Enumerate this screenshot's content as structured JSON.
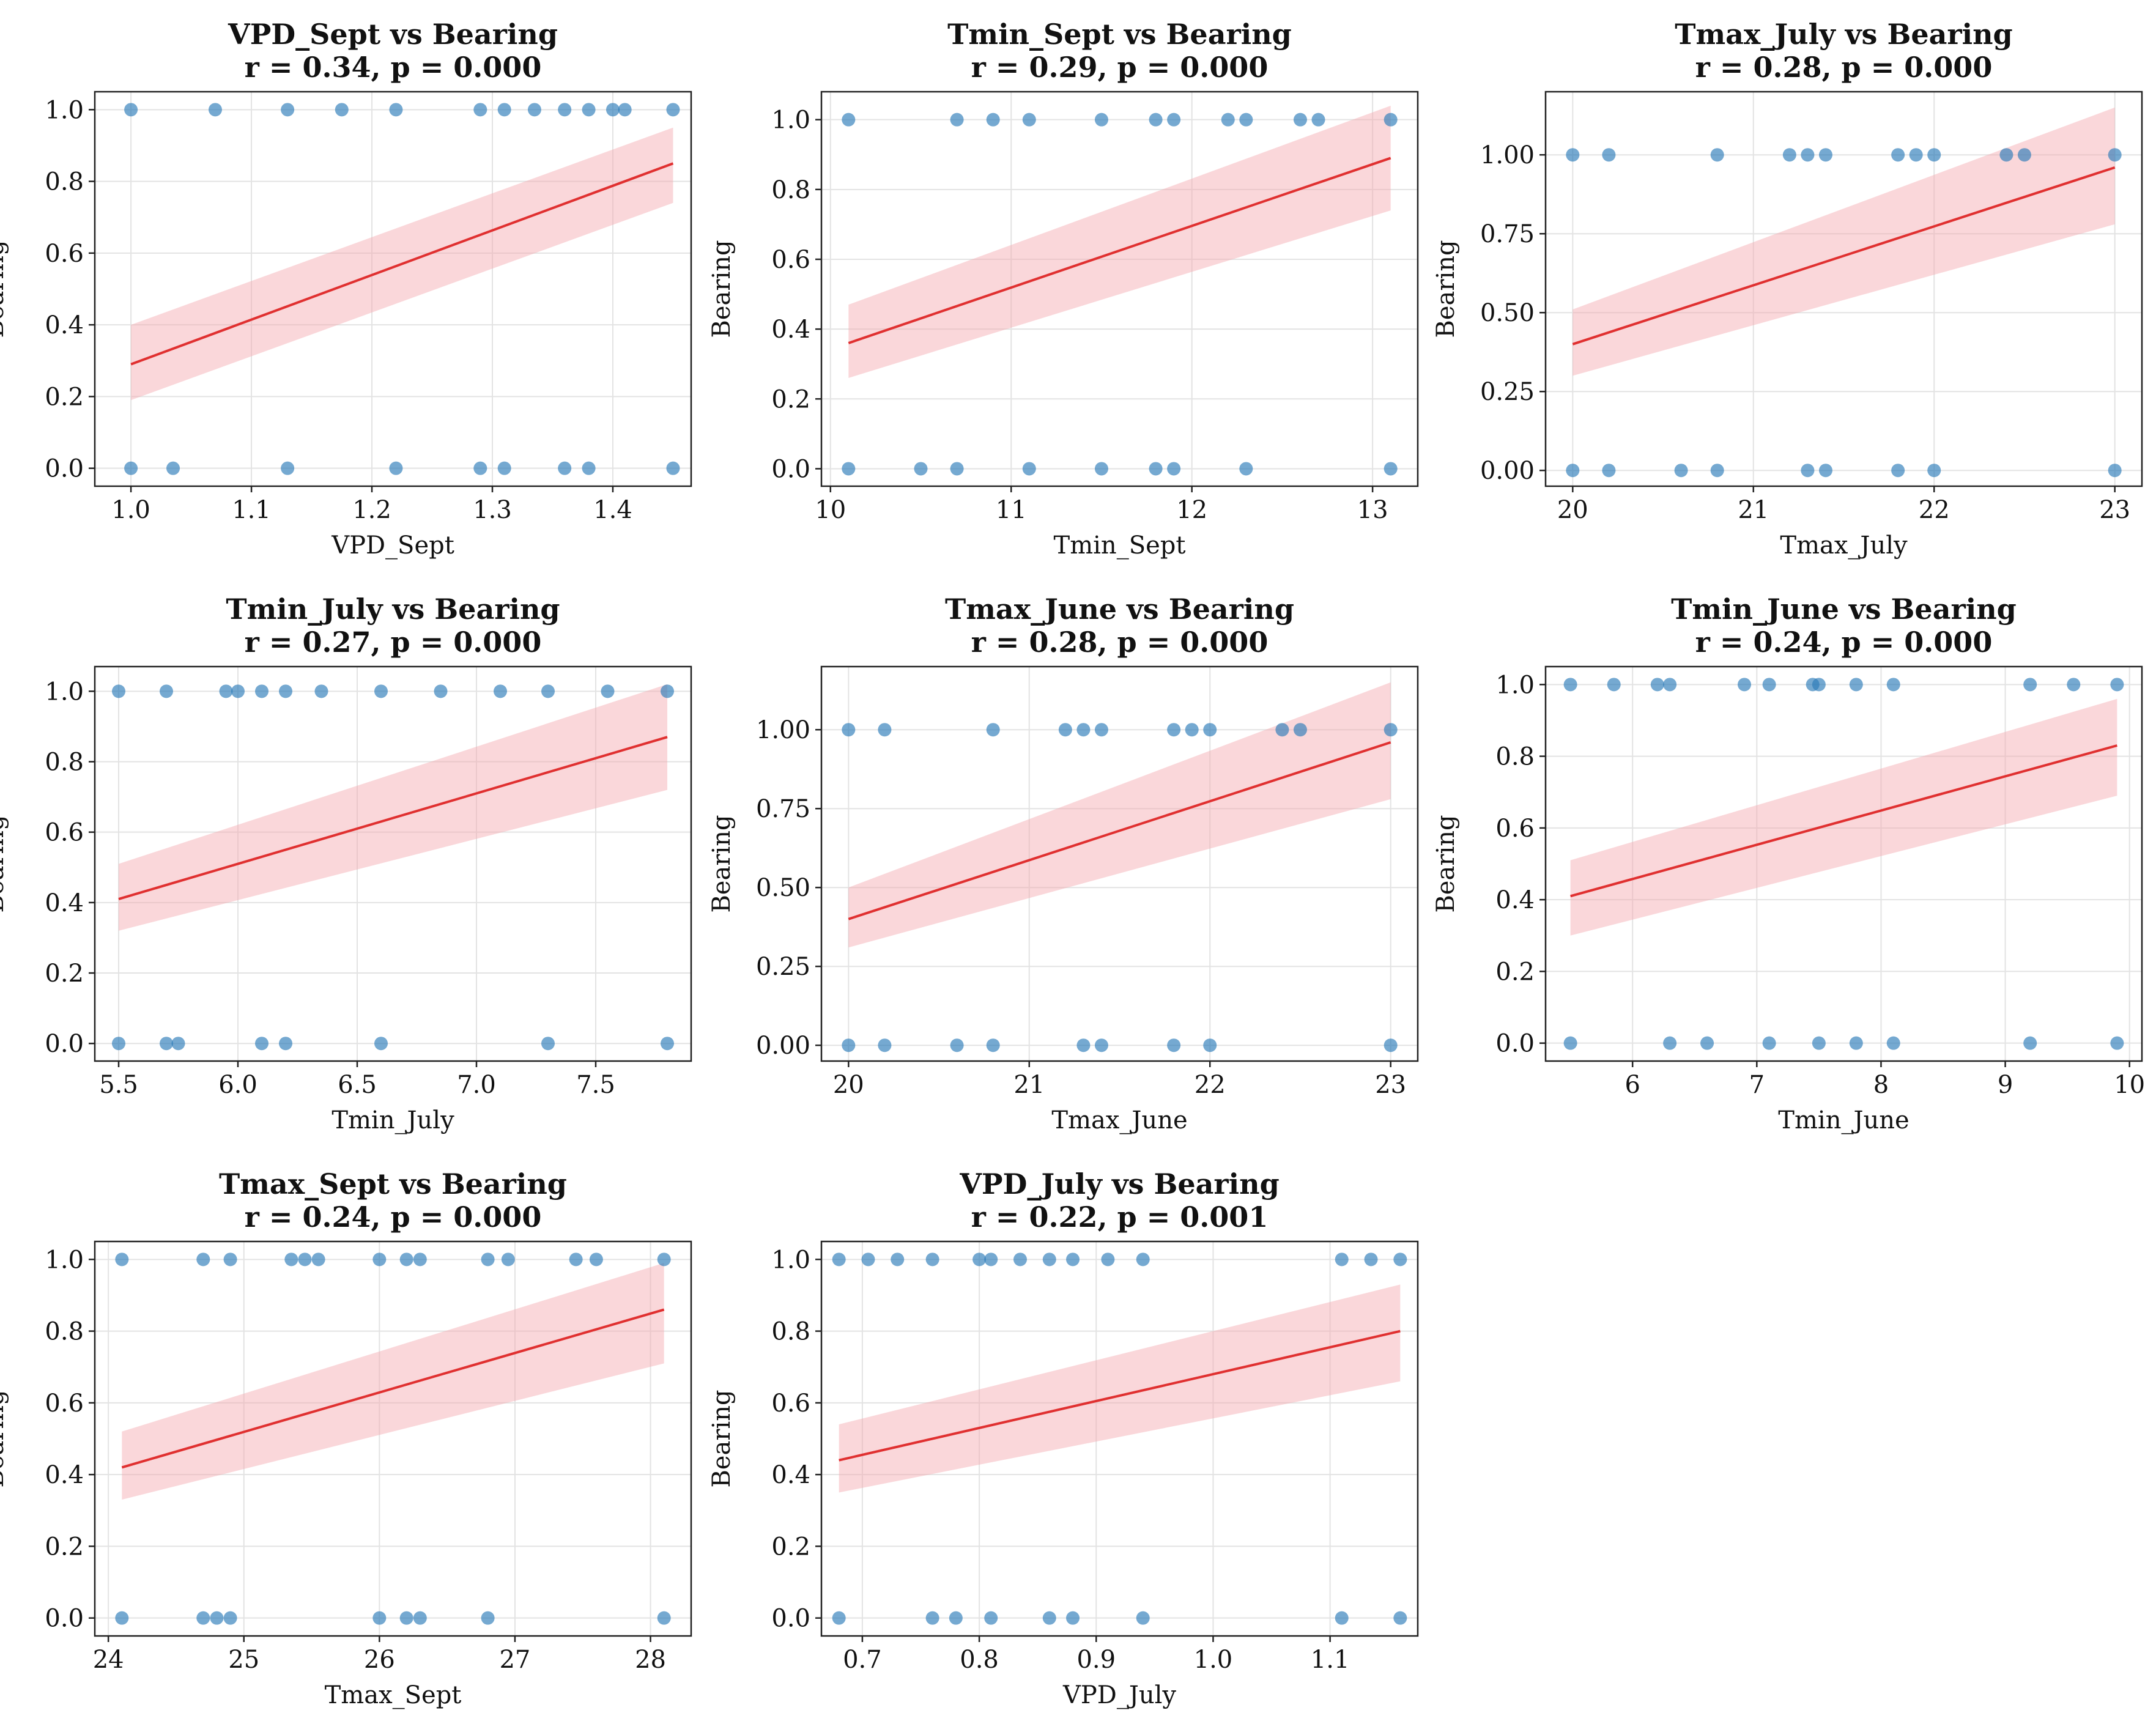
{
  "figure": {
    "title": "Logistic-style scatter plots of predictors vs Bearing"
  },
  "colors": {
    "point": "#2b7bb9",
    "fit_line": "#e03030",
    "ci_band": "#f4a6ad",
    "grid": "#e3e3e3",
    "axes": "#222222"
  },
  "chart_data": [
    {
      "type": "scatter",
      "title": "VPD_Sept vs Bearing",
      "subtitle": "r = 0.34, p = 0.000",
      "xlabel": "VPD_Sept",
      "ylabel": "Bearing",
      "xlim": [
        0.97,
        1.465
      ],
      "ylim": [
        -0.05,
        1.05
      ],
      "xticks": [
        1.0,
        1.1,
        1.2,
        1.3,
        1.4
      ],
      "xtick_labels": [
        "1.0",
        "1.1",
        "1.2",
        "1.3",
        "1.4"
      ],
      "yticks": [
        0,
        0.2,
        0.4,
        0.6,
        0.8,
        1.0
      ],
      "ytick_labels": [
        "0.0",
        "0.2",
        "0.4",
        "0.6",
        "0.8",
        "1.0"
      ],
      "x1": [
        1.0,
        1.07,
        1.13,
        1.175,
        1.22,
        1.29,
        1.31,
        1.335,
        1.36,
        1.38,
        1.4,
        1.41,
        1.45
      ],
      "x0": [
        1.0,
        1.035,
        1.13,
        1.22,
        1.29,
        1.31,
        1.36,
        1.38,
        1.45
      ],
      "fit": {
        "x": [
          1.0,
          1.45
        ],
        "y": [
          0.29,
          0.85
        ]
      },
      "ci": {
        "x": [
          1.0,
          1.45
        ],
        "lower": [
          0.19,
          0.74
        ],
        "upper": [
          0.4,
          0.95
        ]
      }
    },
    {
      "type": "scatter",
      "title": "Tmin_Sept vs Bearing",
      "subtitle": "r = 0.29, p = 0.000",
      "xlabel": "Tmin_Sept",
      "ylabel": "Bearing",
      "xlim": [
        9.95,
        13.25
      ],
      "ylim": [
        -0.05,
        1.08
      ],
      "xticks": [
        10,
        11,
        12,
        13
      ],
      "xtick_labels": [
        "10",
        "11",
        "12",
        "13"
      ],
      "yticks": [
        0,
        0.2,
        0.4,
        0.6,
        0.8,
        1.0
      ],
      "ytick_labels": [
        "0.0",
        "0.2",
        "0.4",
        "0.6",
        "0.8",
        "1.0"
      ],
      "x1": [
        10.1,
        10.7,
        10.9,
        11.1,
        11.5,
        11.8,
        11.9,
        12.2,
        12.3,
        12.6,
        12.7,
        13.1
      ],
      "x0": [
        10.1,
        10.5,
        10.7,
        11.1,
        11.5,
        11.8,
        11.9,
        12.3,
        13.1
      ],
      "fit": {
        "x": [
          10.1,
          13.1
        ],
        "y": [
          0.36,
          0.89
        ]
      },
      "ci": {
        "x": [
          10.1,
          13.1
        ],
        "lower": [
          0.26,
          0.74
        ],
        "upper": [
          0.47,
          1.04
        ]
      }
    },
    {
      "type": "scatter",
      "title": "Tmax_July vs Bearing",
      "subtitle": "r = 0.28, p = 0.000",
      "xlabel": "Tmax_July",
      "ylabel": "Bearing",
      "xlim": [
        19.85,
        23.15
      ],
      "ylim": [
        -0.05,
        1.2
      ],
      "xticks": [
        20,
        21,
        22,
        23
      ],
      "xtick_labels": [
        "20",
        "21",
        "22",
        "23"
      ],
      "yticks": [
        0,
        0.25,
        0.5,
        0.75,
        1.0
      ],
      "ytick_labels": [
        "0.00",
        "0.25",
        "0.50",
        "0.75",
        "1.00"
      ],
      "x1": [
        20.0,
        20.2,
        20.8,
        21.2,
        21.3,
        21.4,
        21.8,
        21.9,
        22.0,
        22.4,
        22.5,
        23.0
      ],
      "x0": [
        20.0,
        20.2,
        20.6,
        20.8,
        21.3,
        21.4,
        21.8,
        22.0,
        23.0
      ],
      "fit": {
        "x": [
          20.0,
          23.0
        ],
        "y": [
          0.4,
          0.96
        ]
      },
      "ci": {
        "x": [
          20.0,
          23.0
        ],
        "lower": [
          0.3,
          0.78
        ],
        "upper": [
          0.51,
          1.15
        ]
      }
    },
    {
      "type": "scatter",
      "title": "Tmin_July vs Bearing",
      "subtitle": "r = 0.27, p = 0.000",
      "xlabel": "Tmin_July",
      "ylabel": "Bearing",
      "xlim": [
        5.4,
        7.9
      ],
      "ylim": [
        -0.05,
        1.07
      ],
      "xticks": [
        5.5,
        6.0,
        6.5,
        7.0,
        7.5
      ],
      "xtick_labels": [
        "5.5",
        "6.0",
        "6.5",
        "7.0",
        "7.5"
      ],
      "yticks": [
        0,
        0.2,
        0.4,
        0.6,
        0.8,
        1.0
      ],
      "ytick_labels": [
        "0.0",
        "0.2",
        "0.4",
        "0.6",
        "0.8",
        "1.0"
      ],
      "x1": [
        5.5,
        5.7,
        5.95,
        6.0,
        6.1,
        6.2,
        6.35,
        6.6,
        6.85,
        7.1,
        7.3,
        7.55,
        7.8
      ],
      "x0": [
        5.5,
        5.7,
        5.75,
        6.1,
        6.2,
        6.6,
        7.3,
        7.8
      ],
      "fit": {
        "x": [
          5.5,
          7.8
        ],
        "y": [
          0.41,
          0.87
        ]
      },
      "ci": {
        "x": [
          5.5,
          7.8
        ],
        "lower": [
          0.32,
          0.72
        ],
        "upper": [
          0.51,
          1.02
        ]
      }
    },
    {
      "type": "scatter",
      "title": "Tmax_June vs Bearing",
      "subtitle": "r = 0.28, p = 0.000",
      "xlabel": "Tmax_June",
      "ylabel": "Bearing",
      "xlim": [
        19.85,
        23.15
      ],
      "ylim": [
        -0.05,
        1.2
      ],
      "xticks": [
        20,
        21,
        22,
        23
      ],
      "xtick_labels": [
        "20",
        "21",
        "22",
        "23"
      ],
      "yticks": [
        0,
        0.25,
        0.5,
        0.75,
        1.0
      ],
      "ytick_labels": [
        "0.00",
        "0.25",
        "0.50",
        "0.75",
        "1.00"
      ],
      "x1": [
        20.0,
        20.2,
        20.8,
        21.2,
        21.3,
        21.4,
        21.8,
        21.9,
        22.0,
        22.4,
        22.5,
        23.0
      ],
      "x0": [
        20.0,
        20.2,
        20.6,
        20.8,
        21.3,
        21.4,
        21.8,
        22.0,
        23.0
      ],
      "fit": {
        "x": [
          20.0,
          23.0
        ],
        "y": [
          0.4,
          0.96
        ]
      },
      "ci": {
        "x": [
          20.0,
          23.0
        ],
        "lower": [
          0.31,
          0.78
        ],
        "upper": [
          0.5,
          1.15
        ]
      }
    },
    {
      "type": "scatter",
      "title": "Tmin_June vs Bearing",
      "subtitle": "r = 0.24, p = 0.000",
      "xlabel": "Tmin_June",
      "ylabel": "Bearing",
      "xlim": [
        5.3,
        10.1
      ],
      "ylim": [
        -0.05,
        1.05
      ],
      "xticks": [
        6,
        7,
        8,
        9,
        10
      ],
      "xtick_labels": [
        "6",
        "7",
        "8",
        "9",
        "10"
      ],
      "yticks": [
        0,
        0.2,
        0.4,
        0.6,
        0.8,
        1.0
      ],
      "ytick_labels": [
        "0.0",
        "0.2",
        "0.4",
        "0.6",
        "0.8",
        "1.0"
      ],
      "x1": [
        5.5,
        5.85,
        6.2,
        6.3,
        6.9,
        7.1,
        7.45,
        7.5,
        7.8,
        8.1,
        9.2,
        9.55,
        9.9
      ],
      "x0": [
        5.5,
        6.3,
        6.6,
        7.1,
        7.5,
        7.8,
        8.1,
        9.2,
        9.9
      ],
      "fit": {
        "x": [
          5.5,
          9.9
        ],
        "y": [
          0.41,
          0.83
        ]
      },
      "ci": {
        "x": [
          5.5,
          9.9
        ],
        "lower": [
          0.3,
          0.69
        ],
        "upper": [
          0.51,
          0.96
        ]
      }
    },
    {
      "type": "scatter",
      "title": "Tmax_Sept vs Bearing",
      "subtitle": "r = 0.24, p = 0.000",
      "xlabel": "Tmax_Sept",
      "ylabel": "Bearing",
      "xlim": [
        23.9,
        28.3
      ],
      "ylim": [
        -0.05,
        1.05
      ],
      "xticks": [
        24,
        25,
        26,
        27,
        28
      ],
      "xtick_labels": [
        "24",
        "25",
        "26",
        "27",
        "28"
      ],
      "yticks": [
        0,
        0.2,
        0.4,
        0.6,
        0.8,
        1.0
      ],
      "ytick_labels": [
        "0.0",
        "0.2",
        "0.4",
        "0.6",
        "0.8",
        "1.0"
      ],
      "x1": [
        24.1,
        24.7,
        24.9,
        25.35,
        25.45,
        25.55,
        26.0,
        26.2,
        26.3,
        26.8,
        26.95,
        27.45,
        27.6,
        28.1
      ],
      "x0": [
        24.1,
        24.7,
        24.8,
        24.9,
        26.0,
        26.2,
        26.3,
        26.8,
        28.1
      ],
      "fit": {
        "x": [
          24.1,
          28.1
        ],
        "y": [
          0.42,
          0.86
        ]
      },
      "ci": {
        "x": [
          24.1,
          28.1
        ],
        "lower": [
          0.33,
          0.71
        ],
        "upper": [
          0.52,
          0.99
        ]
      }
    },
    {
      "type": "scatter",
      "title": "VPD_July vs Bearing",
      "subtitle": "r = 0.22, p = 0.001",
      "xlabel": "VPD_July",
      "ylabel": "Bearing",
      "xlim": [
        0.665,
        1.175
      ],
      "ylim": [
        -0.05,
        1.05
      ],
      "xticks": [
        0.7,
        0.8,
        0.9,
        1.0,
        1.1
      ],
      "xtick_labels": [
        "0.7",
        "0.8",
        "0.9",
        "1.0",
        "1.1"
      ],
      "yticks": [
        0,
        0.2,
        0.4,
        0.6,
        0.8,
        1.0
      ],
      "ytick_labels": [
        "0.0",
        "0.2",
        "0.4",
        "0.6",
        "0.8",
        "1.0"
      ],
      "x1": [
        0.68,
        0.705,
        0.73,
        0.76,
        0.8,
        0.81,
        0.835,
        0.86,
        0.88,
        0.91,
        0.94,
        1.11,
        1.135,
        1.16
      ],
      "x0": [
        0.68,
        0.76,
        0.78,
        0.81,
        0.86,
        0.88,
        0.94,
        1.11,
        1.16
      ],
      "fit": {
        "x": [
          0.68,
          1.16
        ],
        "y": [
          0.44,
          0.8
        ]
      },
      "ci": {
        "x": [
          0.68,
          1.16
        ],
        "lower": [
          0.35,
          0.66
        ],
        "upper": [
          0.54,
          0.93
        ]
      }
    }
  ]
}
